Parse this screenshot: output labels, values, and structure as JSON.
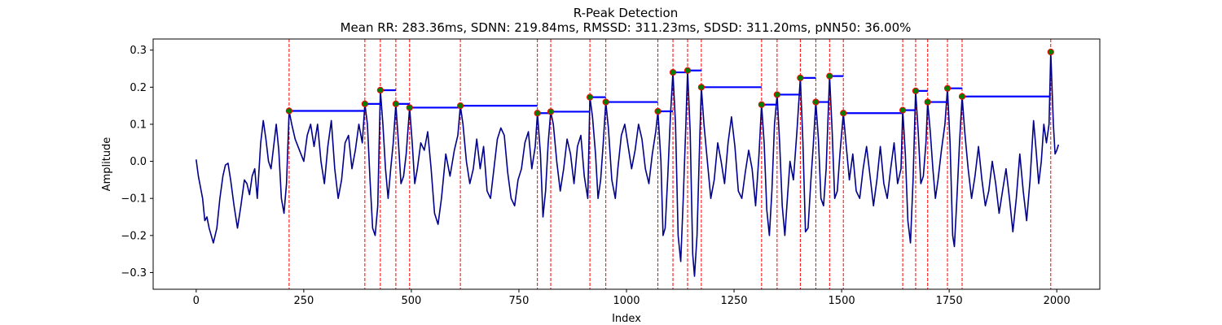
{
  "chart_data": {
    "type": "line",
    "title": "R-Peak Detection",
    "subtitle": "Mean RR: 283.36ms, SDNN: 219.84ms, RMSSD: 311.23ms, SDSD: 311.20ms, pNN50: 36.00%",
    "xlabel": "Index",
    "ylabel": "Amplitude",
    "xlim": [
      -100,
      2100
    ],
    "ylim": [
      -0.345,
      0.33
    ],
    "xticks": [
      0,
      250,
      500,
      750,
      1000,
      1250,
      1500,
      1750,
      2000
    ],
    "xtick_labels": [
      "0",
      "250",
      "500",
      "750",
      "1000",
      "1250",
      "1500",
      "1750",
      "2000"
    ],
    "yticks": [
      -0.3,
      -0.2,
      -0.1,
      0.0,
      0.1,
      0.2,
      0.3
    ],
    "ytick_labels": [
      "−0.3",
      "−0.2",
      "−0.1",
      "0.0",
      "0.1",
      "0.2",
      "0.3"
    ],
    "grid": false,
    "colors": {
      "signal": "#00008b",
      "peak_line": "#ff0000",
      "rr_bar": "#0000ff",
      "peak_marker_face": "#008000",
      "peak_marker_edge": "#ff0000"
    },
    "signal_keypoints": [
      [
        0,
        0.005
      ],
      [
        5,
        -0.04
      ],
      [
        10,
        -0.07
      ],
      [
        15,
        -0.1
      ],
      [
        20,
        -0.16
      ],
      [
        25,
        -0.15
      ],
      [
        30,
        -0.18
      ],
      [
        35,
        -0.2
      ],
      [
        40,
        -0.22
      ],
      [
        48,
        -0.18
      ],
      [
        55,
        -0.1
      ],
      [
        62,
        -0.04
      ],
      [
        68,
        -0.01
      ],
      [
        74,
        -0.005
      ],
      [
        80,
        -0.05
      ],
      [
        88,
        -0.12
      ],
      [
        96,
        -0.18
      ],
      [
        104,
        -0.12
      ],
      [
        112,
        -0.05
      ],
      [
        118,
        -0.06
      ],
      [
        124,
        -0.09
      ],
      [
        130,
        -0.04
      ],
      [
        136,
        -0.02
      ],
      [
        142,
        -0.1
      ],
      [
        150,
        0.05
      ],
      [
        156,
        0.11
      ],
      [
        162,
        0.06
      ],
      [
        168,
        0.0
      ],
      [
        174,
        -0.02
      ],
      [
        180,
        0.04
      ],
      [
        186,
        0.1
      ],
      [
        192,
        0.03
      ],
      [
        198,
        -0.1
      ],
      [
        204,
        -0.14
      ],
      [
        210,
        -0.06
      ],
      [
        216,
        0.136
      ],
      [
        222,
        0.1
      ],
      [
        230,
        0.06
      ],
      [
        240,
        0.03
      ],
      [
        250,
        0.0
      ],
      [
        258,
        0.07
      ],
      [
        266,
        0.1
      ],
      [
        274,
        0.04
      ],
      [
        282,
        0.1
      ],
      [
        290,
        0.0
      ],
      [
        298,
        -0.06
      ],
      [
        306,
        0.04
      ],
      [
        314,
        0.11
      ],
      [
        322,
        -0.02
      ],
      [
        330,
        -0.1
      ],
      [
        338,
        -0.05
      ],
      [
        346,
        0.05
      ],
      [
        354,
        0.07
      ],
      [
        362,
        -0.02
      ],
      [
        370,
        0.03
      ],
      [
        378,
        0.1
      ],
      [
        386,
        0.05
      ],
      [
        392,
        0.155
      ],
      [
        398,
        0.1
      ],
      [
        404,
        -0.05
      ],
      [
        410,
        -0.18
      ],
      [
        416,
        -0.2
      ],
      [
        422,
        -0.12
      ],
      [
        428,
        0.192
      ],
      [
        434,
        0.1
      ],
      [
        440,
        -0.02
      ],
      [
        446,
        -0.1
      ],
      [
        452,
        -0.02
      ],
      [
        458,
        0.05
      ],
      [
        464,
        0.155
      ],
      [
        470,
        0.05
      ],
      [
        476,
        -0.06
      ],
      [
        482,
        -0.04
      ],
      [
        488,
        0.02
      ],
      [
        496,
        0.145
      ],
      [
        502,
        0.05
      ],
      [
        508,
        -0.06
      ],
      [
        514,
        -0.02
      ],
      [
        522,
        0.05
      ],
      [
        530,
        0.03
      ],
      [
        538,
        0.08
      ],
      [
        546,
        -0.02
      ],
      [
        554,
        -0.14
      ],
      [
        562,
        -0.17
      ],
      [
        570,
        -0.1
      ],
      [
        580,
        0.02
      ],
      [
        590,
        -0.04
      ],
      [
        600,
        0.03
      ],
      [
        608,
        0.07
      ],
      [
        614,
        0.15
      ],
      [
        620,
        0.1
      ],
      [
        628,
        0.0
      ],
      [
        636,
        -0.06
      ],
      [
        644,
        -0.02
      ],
      [
        652,
        0.06
      ],
      [
        660,
        -0.02
      ],
      [
        668,
        0.04
      ],
      [
        676,
        -0.08
      ],
      [
        684,
        -0.1
      ],
      [
        692,
        -0.02
      ],
      [
        700,
        0.06
      ],
      [
        708,
        0.09
      ],
      [
        716,
        0.07
      ],
      [
        724,
        -0.03
      ],
      [
        732,
        -0.1
      ],
      [
        740,
        -0.12
      ],
      [
        748,
        -0.05
      ],
      [
        756,
        -0.02
      ],
      [
        764,
        0.05
      ],
      [
        772,
        0.08
      ],
      [
        780,
        -0.02
      ],
      [
        788,
        0.04
      ],
      [
        793,
        0.13
      ],
      [
        800,
        0.02
      ],
      [
        806,
        -0.15
      ],
      [
        812,
        -0.08
      ],
      [
        818,
        0.05
      ],
      [
        824,
        0.134
      ],
      [
        830,
        0.1
      ],
      [
        838,
        0.0
      ],
      [
        846,
        -0.08
      ],
      [
        854,
        -0.02
      ],
      [
        862,
        0.06
      ],
      [
        870,
        0.02
      ],
      [
        878,
        -0.06
      ],
      [
        886,
        0.04
      ],
      [
        894,
        0.07
      ],
      [
        902,
        -0.04
      ],
      [
        910,
        -0.1
      ],
      [
        915,
        0.173
      ],
      [
        921,
        0.12
      ],
      [
        928,
        0.02
      ],
      [
        934,
        -0.1
      ],
      [
        940,
        -0.05
      ],
      [
        946,
        0.05
      ],
      [
        952,
        0.16
      ],
      [
        958,
        0.09
      ],
      [
        966,
        -0.05
      ],
      [
        974,
        -0.1
      ],
      [
        980,
        -0.02
      ],
      [
        988,
        0.07
      ],
      [
        996,
        0.1
      ],
      [
        1004,
        0.04
      ],
      [
        1012,
        -0.02
      ],
      [
        1020,
        0.03
      ],
      [
        1028,
        0.1
      ],
      [
        1036,
        0.06
      ],
      [
        1044,
        -0.02
      ],
      [
        1052,
        -0.06
      ],
      [
        1060,
        0.02
      ],
      [
        1068,
        0.08
      ],
      [
        1073,
        0.135
      ],
      [
        1080,
        0.0
      ],
      [
        1085,
        -0.2
      ],
      [
        1090,
        -0.18
      ],
      [
        1096,
        -0.04
      ],
      [
        1102,
        0.12
      ],
      [
        1108,
        0.24
      ],
      [
        1114,
        0.1
      ],
      [
        1120,
        -0.2
      ],
      [
        1126,
        -0.27
      ],
      [
        1132,
        -0.1
      ],
      [
        1138,
        0.1
      ],
      [
        1142,
        0.245
      ],
      [
        1148,
        0.08
      ],
      [
        1154,
        -0.25
      ],
      [
        1158,
        -0.31
      ],
      [
        1164,
        -0.2
      ],
      [
        1170,
        0.05
      ],
      [
        1174,
        0.2
      ],
      [
        1180,
        0.1
      ],
      [
        1188,
        0.0
      ],
      [
        1196,
        -0.1
      ],
      [
        1204,
        -0.05
      ],
      [
        1212,
        0.05
      ],
      [
        1220,
        0.0
      ],
      [
        1228,
        -0.06
      ],
      [
        1236,
        0.05
      ],
      [
        1244,
        0.12
      ],
      [
        1252,
        0.04
      ],
      [
        1260,
        -0.08
      ],
      [
        1268,
        -0.1
      ],
      [
        1276,
        -0.03
      ],
      [
        1284,
        0.03
      ],
      [
        1292,
        -0.02
      ],
      [
        1300,
        -0.12
      ],
      [
        1308,
        0.02
      ],
      [
        1314,
        0.153
      ],
      [
        1320,
        0.05
      ],
      [
        1326,
        -0.13
      ],
      [
        1332,
        -0.2
      ],
      [
        1338,
        -0.08
      ],
      [
        1344,
        0.1
      ],
      [
        1350,
        0.18
      ],
      [
        1356,
        0.05
      ],
      [
        1362,
        -0.12
      ],
      [
        1368,
        -0.2
      ],
      [
        1374,
        -0.1
      ],
      [
        1380,
        0.0
      ],
      [
        1388,
        -0.05
      ],
      [
        1396,
        0.08
      ],
      [
        1404,
        0.225
      ],
      [
        1410,
        0.05
      ],
      [
        1416,
        -0.19
      ],
      [
        1422,
        -0.18
      ],
      [
        1428,
        -0.06
      ],
      [
        1434,
        0.04
      ],
      [
        1440,
        0.16
      ],
      [
        1446,
        0.06
      ],
      [
        1452,
        -0.1
      ],
      [
        1458,
        -0.12
      ],
      [
        1464,
        -0.02
      ],
      [
        1472,
        0.23
      ],
      [
        1478,
        0.08
      ],
      [
        1484,
        -0.1
      ],
      [
        1490,
        -0.08
      ],
      [
        1496,
        0.02
      ],
      [
        1504,
        0.13
      ],
      [
        1510,
        0.05
      ],
      [
        1518,
        -0.05
      ],
      [
        1526,
        0.02
      ],
      [
        1534,
        -0.08
      ],
      [
        1542,
        -0.1
      ],
      [
        1550,
        -0.02
      ],
      [
        1558,
        0.04
      ],
      [
        1566,
        -0.04
      ],
      [
        1574,
        -0.12
      ],
      [
        1582,
        -0.05
      ],
      [
        1590,
        0.04
      ],
      [
        1598,
        -0.06
      ],
      [
        1606,
        -0.1
      ],
      [
        1614,
        -0.02
      ],
      [
        1622,
        0.05
      ],
      [
        1630,
        -0.06
      ],
      [
        1638,
        -0.02
      ],
      [
        1642,
        0.138
      ],
      [
        1648,
        0.02
      ],
      [
        1654,
        -0.16
      ],
      [
        1660,
        -0.22
      ],
      [
        1666,
        -0.05
      ],
      [
        1672,
        0.19
      ],
      [
        1678,
        0.08
      ],
      [
        1684,
        -0.06
      ],
      [
        1690,
        -0.04
      ],
      [
        1696,
        0.05
      ],
      [
        1700,
        0.16
      ],
      [
        1706,
        0.08
      ],
      [
        1712,
        -0.02
      ],
      [
        1718,
        -0.1
      ],
      [
        1724,
        -0.05
      ],
      [
        1732,
        0.03
      ],
      [
        1740,
        0.1
      ],
      [
        1746,
        0.197
      ],
      [
        1752,
        0.05
      ],
      [
        1758,
        -0.2
      ],
      [
        1762,
        -0.23
      ],
      [
        1768,
        -0.1
      ],
      [
        1774,
        0.05
      ],
      [
        1780,
        0.175
      ],
      [
        1786,
        0.08
      ],
      [
        1794,
        -0.02
      ],
      [
        1802,
        -0.1
      ],
      [
        1810,
        -0.04
      ],
      [
        1818,
        0.04
      ],
      [
        1826,
        -0.05
      ],
      [
        1834,
        -0.12
      ],
      [
        1842,
        -0.08
      ],
      [
        1850,
        0.0
      ],
      [
        1858,
        -0.06
      ],
      [
        1866,
        -0.14
      ],
      [
        1874,
        -0.08
      ],
      [
        1882,
        -0.02
      ],
      [
        1890,
        -0.1
      ],
      [
        1898,
        -0.19
      ],
      [
        1906,
        -0.1
      ],
      [
        1914,
        0.02
      ],
      [
        1922,
        -0.08
      ],
      [
        1930,
        -0.16
      ],
      [
        1938,
        -0.05
      ],
      [
        1946,
        0.11
      ],
      [
        1952,
        0.03
      ],
      [
        1958,
        -0.06
      ],
      [
        1964,
        0.0
      ],
      [
        1970,
        0.1
      ],
      [
        1976,
        0.05
      ],
      [
        1982,
        0.1
      ],
      [
        1986,
        0.295
      ],
      [
        1992,
        0.1
      ],
      [
        1996,
        0.02
      ],
      [
        2000,
        0.03
      ],
      [
        2004,
        0.045
      ]
    ],
    "peaks": [
      {
        "index": 216,
        "amplitude": 0.136
      },
      {
        "index": 392,
        "amplitude": 0.155
      },
      {
        "index": 428,
        "amplitude": 0.192
      },
      {
        "index": 464,
        "amplitude": 0.155
      },
      {
        "index": 496,
        "amplitude": 0.145
      },
      {
        "index": 614,
        "amplitude": 0.15
      },
      {
        "index": 793,
        "amplitude": 0.13
      },
      {
        "index": 824,
        "amplitude": 0.134
      },
      {
        "index": 915,
        "amplitude": 0.173
      },
      {
        "index": 952,
        "amplitude": 0.16
      },
      {
        "index": 1073,
        "amplitude": 0.135
      },
      {
        "index": 1108,
        "amplitude": 0.24
      },
      {
        "index": 1142,
        "amplitude": 0.245
      },
      {
        "index": 1174,
        "amplitude": 0.2
      },
      {
        "index": 1314,
        "amplitude": 0.153
      },
      {
        "index": 1350,
        "amplitude": 0.18
      },
      {
        "index": 1404,
        "amplitude": 0.225
      },
      {
        "index": 1440,
        "amplitude": 0.16
      },
      {
        "index": 1472,
        "amplitude": 0.23
      },
      {
        "index": 1504,
        "amplitude": 0.13
      },
      {
        "index": 1642,
        "amplitude": 0.138
      },
      {
        "index": 1672,
        "amplitude": 0.19
      },
      {
        "index": 1700,
        "amplitude": 0.16
      },
      {
        "index": 1746,
        "amplitude": 0.197
      },
      {
        "index": 1780,
        "amplitude": 0.175
      },
      {
        "index": 1986,
        "amplitude": 0.295
      }
    ]
  }
}
